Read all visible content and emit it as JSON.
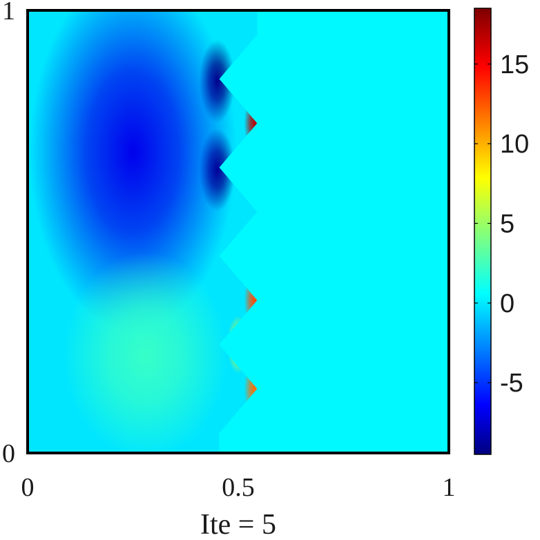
{
  "chart_data": {
    "type": "heatmap",
    "title": "",
    "xlabel": "Ite = 5",
    "ylabel": "",
    "xlim": [
      0,
      1
    ],
    "ylim": [
      0,
      1
    ],
    "x_ticks": [
      "0",
      "0.5",
      "1"
    ],
    "y_ticks": [
      "0",
      "1"
    ],
    "colormap": "jet",
    "colorbar": {
      "range": [
        -9.5,
        18.5
      ],
      "ticks": [
        -5,
        0,
        5,
        10,
        15
      ],
      "tick_labels": [
        "-5",
        "0",
        "5",
        "10",
        "15"
      ],
      "placement": "right"
    },
    "background_value": 0.8,
    "field": {
      "boundary_x": [
        0.545,
        0.455,
        0.545,
        0.455,
        0.545,
        0.455,
        0.545,
        0.455,
        0.545,
        0.455
      ],
      "boundary_y": [
        0.945,
        0.845,
        0.745,
        0.645,
        0.545,
        0.445,
        0.345,
        0.245,
        0.145,
        0.045
      ],
      "features": [
        {
          "x": 0.45,
          "y": 0.84,
          "value": -9.5,
          "kind": "minimum"
        },
        {
          "x": 0.45,
          "y": 0.64,
          "value": -9.5,
          "kind": "minimum"
        },
        {
          "x": 0.54,
          "y": 0.745,
          "value": 17,
          "kind": "maximum"
        },
        {
          "x": 0.54,
          "y": 0.345,
          "value": 13,
          "kind": "maximum"
        },
        {
          "x": 0.54,
          "y": 0.145,
          "value": 12,
          "kind": "maximum"
        },
        {
          "x": 0.5,
          "y": 0.245,
          "value": 7,
          "kind": "maximum"
        },
        {
          "x": 0.25,
          "y": 0.68,
          "value": -6.5,
          "kind": "low-region"
        },
        {
          "x": 0.28,
          "y": 0.22,
          "value": 2.5,
          "kind": "high-region"
        }
      ]
    }
  }
}
